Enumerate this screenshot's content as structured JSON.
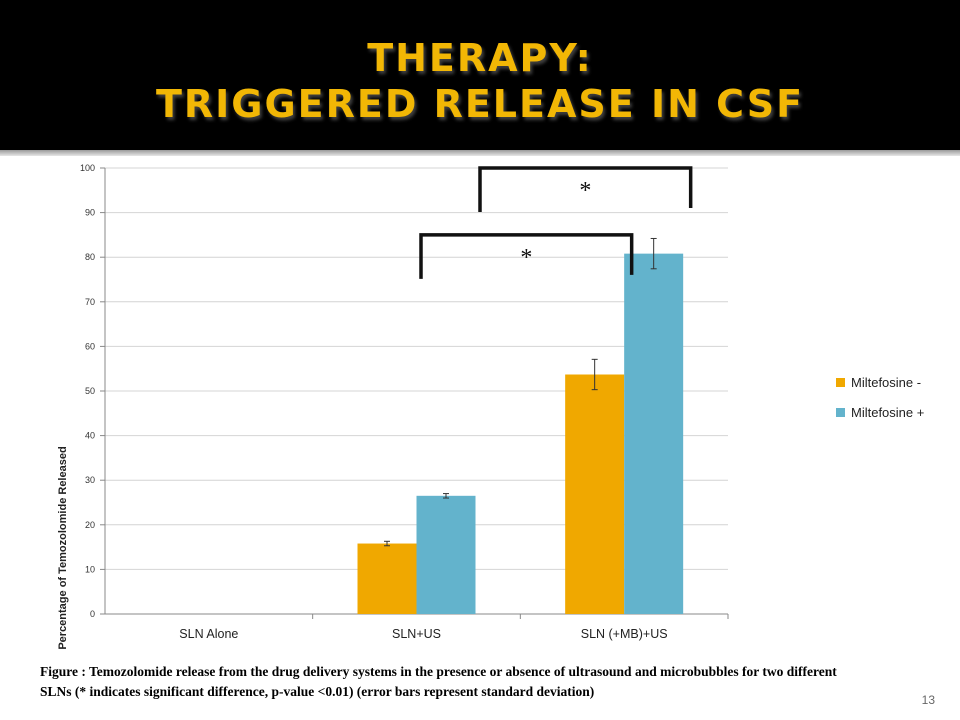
{
  "slide": {
    "title_line1": "THERAPY:",
    "title_line2": "TRIGGERED RELEASE IN CSF",
    "caption": "Figure : Temozolomide release from the drug delivery systems in the presence or absence of ultrasound and microbubbles for two different SLNs (* indicates significant difference, p-value <0.01) (error bars represent standard deviation)",
    "page_number": "13",
    "title_color": "#f2b705",
    "header_color": "#000000"
  },
  "chart_data": {
    "type": "bar",
    "ylabel": "Percentage of Temozolomide Released",
    "ylim": [
      0,
      100
    ],
    "yticks": [
      0,
      10,
      20,
      30,
      40,
      50,
      60,
      70,
      80,
      90,
      100
    ],
    "categories": [
      "SLN Alone",
      "SLN+US",
      "SLN (+MB)+US"
    ],
    "series": [
      {
        "name": "Miltefosine -",
        "color": "#f0a800",
        "values": [
          0,
          15.8,
          53.7
        ],
        "errors": [
          0,
          0.5,
          3.4
        ]
      },
      {
        "name": "Miltefosine +",
        "color": "#63b3cc",
        "values": [
          0,
          26.5,
          80.8
        ],
        "errors": [
          0,
          0.5,
          3.4
        ]
      }
    ],
    "annotations": [
      {
        "text": "*",
        "from": "SLN+US Miltefosine +",
        "to": "SLN (+MB)+US Miltefosine +"
      },
      {
        "text": "*",
        "from": "SLN+US Miltefosine -",
        "to": "SLN (+MB)+US Miltefosine -"
      }
    ],
    "grid": true,
    "legend": "right"
  }
}
